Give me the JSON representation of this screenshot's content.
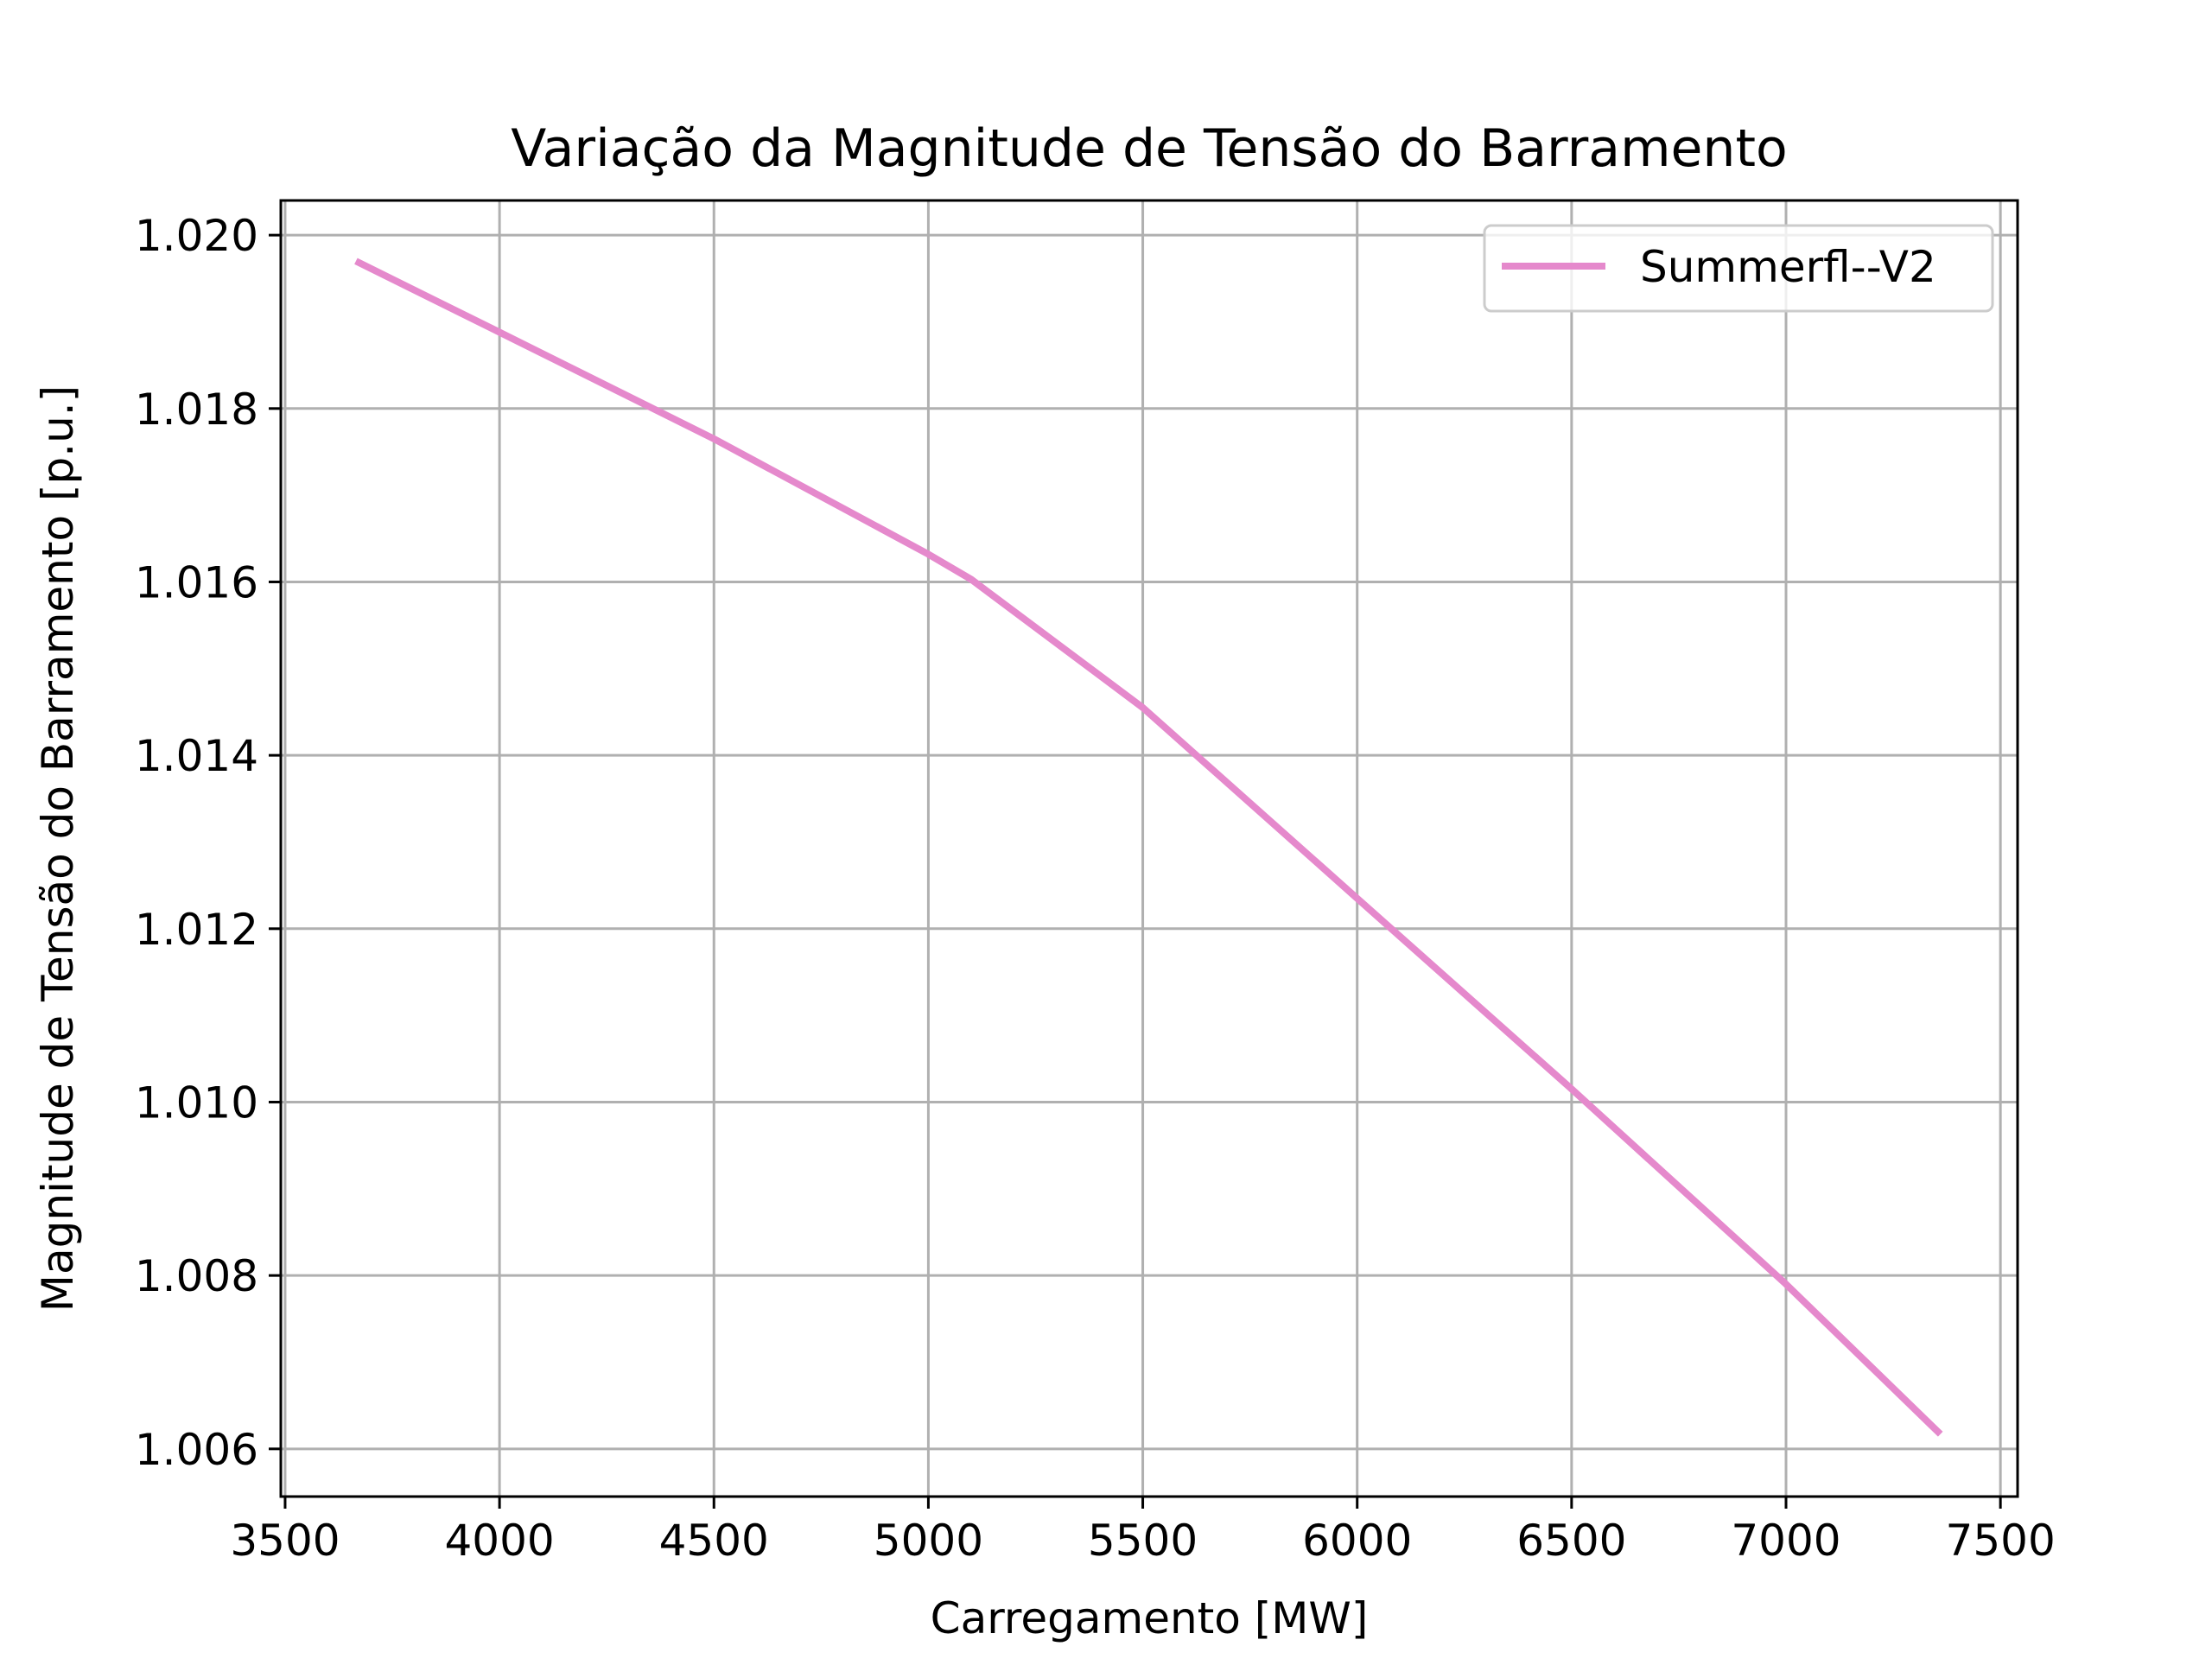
{
  "chart_data": {
    "type": "line",
    "title": "Variação da Magnitude de Tensão do Barramento",
    "xlabel": "Carregamento [MW]",
    "ylabel": "Magnitude de Tensão do Barramento [p.u.]",
    "xlim": [
      3490,
      7540
    ],
    "ylim": [
      1.00545,
      1.0204
    ],
    "xticks": [
      3500,
      4000,
      4500,
      5000,
      5500,
      6000,
      6500,
      7000,
      7500
    ],
    "xtick_labels": [
      "3500",
      "4000",
      "4500",
      "5000",
      "5500",
      "6000",
      "6500",
      "7000",
      "7500"
    ],
    "yticks": [
      1.006,
      1.008,
      1.01,
      1.012,
      1.014,
      1.016,
      1.018,
      1.02
    ],
    "ytick_labels": [
      "1.006",
      "1.008",
      "1.010",
      "1.012",
      "1.014",
      "1.016",
      "1.018",
      "1.020"
    ],
    "grid": true,
    "legend_position": "top-right",
    "series": [
      {
        "name": "Summerfl--V2",
        "color": "#e589cc",
        "x": [
          3665,
          4000,
          4500,
          5000,
          5100,
          5500,
          6000,
          6500,
          7000,
          7360
        ],
        "y": [
          1.0197,
          1.01888,
          1.01765,
          1.01632,
          1.01603,
          1.01455,
          1.01235,
          1.01015,
          1.0079,
          1.00617
        ]
      }
    ]
  }
}
